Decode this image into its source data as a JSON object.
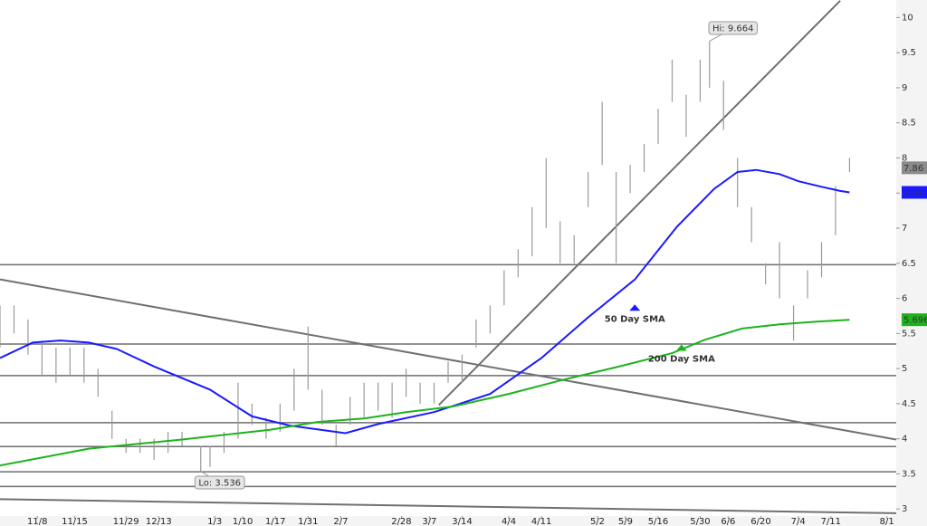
{
  "chart_data": {
    "type": "ohlc",
    "xlim": [
      0,
      192
    ],
    "ylim": [
      2.9,
      10.25
    ],
    "xticks": [
      {
        "value": 8,
        "label": "11/8"
      },
      {
        "value": 16,
        "label": "11/15"
      },
      {
        "value": 27,
        "label": "11/29"
      },
      {
        "value": 34,
        "label": "12/13"
      },
      {
        "value": 46,
        "label": "1/3"
      },
      {
        "value": 52,
        "label": "1/10"
      },
      {
        "value": 59,
        "label": "1/17"
      },
      {
        "value": 66,
        "label": "1/31"
      },
      {
        "value": 73,
        "label": "2/7"
      },
      {
        "value": 86,
        "label": "2/28"
      },
      {
        "value": 92,
        "label": "3/7"
      },
      {
        "value": 99,
        "label": "3/14"
      },
      {
        "value": 109,
        "label": "4/4"
      },
      {
        "value": 116,
        "label": "4/11"
      },
      {
        "value": 128,
        "label": "5/2"
      },
      {
        "value": 134,
        "label": "5/9"
      },
      {
        "value": 141,
        "label": "5/16"
      },
      {
        "value": 150,
        "label": "5/30"
      },
      {
        "value": 156,
        "label": "6/6"
      },
      {
        "value": 163,
        "label": "6/20"
      },
      {
        "value": 171,
        "label": "7/4"
      },
      {
        "value": 178,
        "label": "7/11"
      },
      {
        "value": 190,
        "label": "8/1"
      }
    ],
    "yticks": [
      10,
      9.5,
      9,
      8.5,
      8,
      7.5,
      7,
      6.5,
      6,
      5.5,
      5,
      4.5,
      4,
      3.5,
      3
    ],
    "bars": {
      "color": "#9a9a9a",
      "x": [
        0,
        3,
        6,
        9,
        12,
        15,
        18,
        21,
        24,
        27,
        30,
        33,
        36,
        39,
        43,
        45,
        48,
        51,
        54,
        57,
        60,
        63,
        66,
        69,
        72,
        75,
        78,
        81,
        84,
        87,
        90,
        93,
        96,
        99,
        102,
        105,
        108,
        111,
        114,
        117,
        120,
        123,
        126,
        129,
        132,
        135,
        138,
        141,
        144,
        147,
        150,
        152,
        155,
        158,
        161,
        164,
        167,
        170,
        173,
        176,
        179,
        182
      ],
      "high": [
        5.9,
        5.9,
        5.7,
        5.4,
        5.3,
        5.3,
        5.3,
        5.0,
        4.4,
        4.0,
        4.0,
        4.0,
        4.1,
        4.1,
        3.9,
        3.9,
        4.1,
        4.8,
        4.5,
        4.3,
        4.5,
        5.0,
        5.6,
        4.7,
        4.2,
        4.6,
        4.8,
        4.8,
        4.8,
        5.0,
        4.8,
        4.8,
        5.1,
        5.2,
        5.7,
        5.9,
        6.4,
        6.7,
        7.3,
        8.0,
        7.1,
        6.9,
        7.8,
        8.8,
        7.8,
        7.9,
        8.2,
        8.7,
        9.4,
        8.9,
        9.4,
        9.664,
        9.1,
        8.0,
        7.3,
        6.5,
        6.8,
        5.9,
        6.4,
        6.8,
        7.6,
        8.0
      ],
      "low": [
        5.3,
        5.5,
        5.2,
        4.9,
        4.8,
        4.9,
        4.8,
        4.6,
        4.0,
        3.8,
        3.8,
        3.7,
        3.8,
        3.9,
        3.536,
        3.6,
        3.8,
        4.0,
        4.2,
        4.0,
        4.1,
        4.4,
        4.7,
        4.2,
        3.9,
        4.2,
        4.3,
        4.4,
        4.3,
        4.6,
        4.5,
        4.5,
        4.8,
        4.8,
        5.3,
        5.5,
        5.9,
        6.3,
        6.6,
        7.0,
        6.5,
        6.5,
        7.3,
        7.9,
        6.5,
        7.5,
        7.8,
        8.2,
        8.8,
        8.3,
        8.8,
        9.0,
        8.4,
        7.3,
        6.8,
        6.2,
        6.0,
        5.4,
        6.0,
        6.3,
        6.9,
        7.8
      ]
    },
    "high_label": "Hi: 9.664",
    "low_label": "Lo: 3.536",
    "sma": [
      {
        "name": "50 Day SMA",
        "color": "#1a1aff",
        "x": [
          0,
          7,
          13,
          19,
          25,
          33,
          45,
          54,
          62,
          74,
          81,
          93,
          105,
          116,
          126,
          136,
          145,
          153,
          158,
          162,
          167,
          171,
          176,
          180,
          182
        ],
        "values": [
          5.15,
          5.37,
          5.4,
          5.37,
          5.28,
          5.03,
          4.7,
          4.32,
          4.19,
          4.08,
          4.21,
          4.38,
          4.64,
          5.15,
          5.73,
          6.27,
          7.02,
          7.56,
          7.8,
          7.83,
          7.77,
          7.67,
          7.59,
          7.53,
          7.51
        ],
        "label_at": [
          136,
          5.72
        ]
      },
      {
        "name": "200 Day SMA",
        "color": "#1db31d",
        "x": [
          0,
          19,
          39,
          58,
          68,
          78,
          87,
          97,
          109,
          120,
          132,
          144,
          151,
          159,
          167,
          175,
          182
        ],
        "values": [
          3.62,
          3.86,
          3.99,
          4.13,
          4.24,
          4.29,
          4.38,
          4.46,
          4.64,
          4.83,
          5.02,
          5.22,
          5.41,
          5.57,
          5.63,
          5.67,
          5.696
        ],
        "label_at": [
          146,
          5.15
        ]
      }
    ],
    "hlines": {
      "color": "#6e6e6e",
      "values": [
        6.48,
        5.35,
        4.9,
        4.23,
        3.89,
        3.53,
        3.32
      ]
    },
    "trendlines": [
      {
        "x": [
          0,
          192
        ],
        "values": [
          6.27,
          3.99
        ]
      },
      {
        "x": [
          94,
          180
        ],
        "values": [
          4.48,
          10.24
        ]
      },
      {
        "x": [
          0,
          192
        ],
        "values": [
          3.14,
          2.94
        ]
      }
    ],
    "value_tags": [
      {
        "value": 7.86,
        "color": "#8a8a8a"
      },
      {
        "value": 7.51,
        "color": "#1a1aff"
      },
      {
        "value": 5.696,
        "color": "#1db31d"
      }
    ]
  }
}
